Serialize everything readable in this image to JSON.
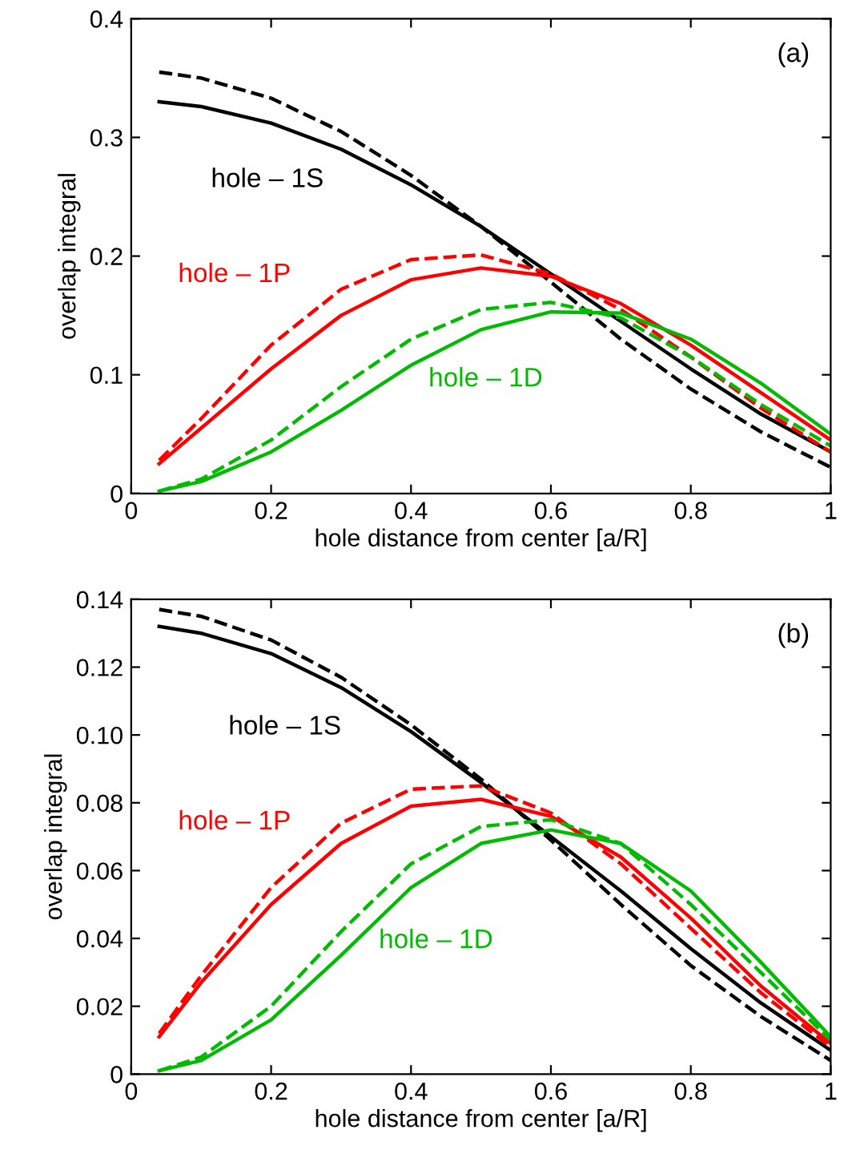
{
  "chart_data": [
    {
      "type": "line",
      "xlabel": "hole distance from center [a/R]",
      "ylabel": "overlap integral",
      "x": [
        0.04,
        0.1,
        0.2,
        0.3,
        0.4,
        0.5,
        0.6,
        0.7,
        0.8,
        0.9,
        1.0
      ],
      "xlim": [
        0,
        1
      ],
      "xticks": [
        0,
        0.2,
        0.4,
        0.6,
        0.8,
        1
      ],
      "ylim": [
        0,
        0.4
      ],
      "yticks": [
        0,
        0.1,
        0.2,
        0.3,
        0.4
      ],
      "grid": false,
      "legend": false,
      "marker": "none",
      "series": [
        {
          "name": "hole – 1S",
          "color": "#000000",
          "line_style": "solid",
          "values": [
            0.33,
            0.326,
            0.312,
            0.29,
            0.26,
            0.225,
            0.185,
            0.145,
            0.105,
            0.067,
            0.035
          ]
        },
        {
          "color": "#000000",
          "line_style": "dashed",
          "values": [
            0.355,
            0.35,
            0.333,
            0.305,
            0.268,
            0.225,
            0.178,
            0.13,
            0.088,
            0.052,
            0.022
          ]
        },
        {
          "name": "hole – 1P",
          "color": "#ff0000",
          "line_style": "solid",
          "values": [
            0.025,
            0.055,
            0.105,
            0.15,
            0.18,
            0.19,
            0.183,
            0.16,
            0.125,
            0.085,
            0.045
          ]
        },
        {
          "color": "#ff0000",
          "line_style": "dashed",
          "values": [
            0.028,
            0.063,
            0.125,
            0.172,
            0.197,
            0.201,
            0.185,
            0.155,
            0.115,
            0.072,
            0.035
          ]
        },
        {
          "name": "hole – 1D",
          "color": "#00bb00",
          "line_style": "solid",
          "values": [
            0.002,
            0.01,
            0.035,
            0.07,
            0.108,
            0.138,
            0.153,
            0.152,
            0.13,
            0.093,
            0.05
          ]
        },
        {
          "color": "#00bb00",
          "line_style": "dashed",
          "values": [
            0.002,
            0.012,
            0.045,
            0.09,
            0.13,
            0.155,
            0.161,
            0.148,
            0.115,
            0.075,
            0.04
          ]
        }
      ],
      "annotations": [
        "(a)"
      ]
    },
    {
      "type": "line",
      "xlabel": "hole distance from center [a/R]",
      "ylabel": "overlap integral",
      "x": [
        0.04,
        0.1,
        0.2,
        0.3,
        0.4,
        0.5,
        0.6,
        0.7,
        0.8,
        0.9,
        1.0
      ],
      "xlim": [
        0,
        1
      ],
      "xticks": [
        0,
        0.2,
        0.4,
        0.6,
        0.8,
        1
      ],
      "ylim": [
        0,
        0.14
      ],
      "yticks": [
        0,
        {
          "value": 0.02,
          "label": "0.02"
        },
        {
          "value": 0.04,
          "label": "0.04"
        },
        {
          "value": 0.06,
          "label": "0.06"
        },
        {
          "value": 0.08,
          "label": "0.08"
        },
        {
          "value": 0.1,
          "label": "0.10"
        },
        {
          "value": 0.12,
          "label": "0.12"
        },
        {
          "value": 0.14,
          "label": "0.14"
        }
      ],
      "grid": false,
      "legend": false,
      "marker": "none",
      "series": [
        {
          "name": "hole – 1S",
          "color": "#000000",
          "line_style": "solid",
          "values": [
            0.132,
            0.13,
            0.124,
            0.114,
            0.101,
            0.086,
            0.07,
            0.054,
            0.037,
            0.021,
            0.007
          ]
        },
        {
          "color": "#000000",
          "line_style": "dashed",
          "values": [
            0.137,
            0.135,
            0.128,
            0.117,
            0.103,
            0.087,
            0.069,
            0.05,
            0.032,
            0.017,
            0.004
          ]
        },
        {
          "name": "hole – 1P",
          "color": "#ff0000",
          "line_style": "solid",
          "values": [
            0.011,
            0.027,
            0.05,
            0.068,
            0.079,
            0.081,
            0.076,
            0.064,
            0.046,
            0.026,
            0.009
          ]
        },
        {
          "color": "#ff0000",
          "line_style": "dashed",
          "values": [
            0.012,
            0.029,
            0.055,
            0.074,
            0.084,
            0.085,
            0.077,
            0.062,
            0.043,
            0.024,
            0.008
          ]
        },
        {
          "name": "hole – 1D",
          "color": "#00bb00",
          "line_style": "solid",
          "values": [
            0.001,
            0.004,
            0.016,
            0.035,
            0.055,
            0.068,
            0.072,
            0.068,
            0.054,
            0.033,
            0.011
          ]
        },
        {
          "color": "#00bb00",
          "line_style": "dashed",
          "values": [
            0.001,
            0.005,
            0.02,
            0.042,
            0.062,
            0.073,
            0.075,
            0.068,
            0.05,
            0.03,
            0.01
          ]
        }
      ],
      "annotations": [
        "(b)"
      ]
    }
  ]
}
